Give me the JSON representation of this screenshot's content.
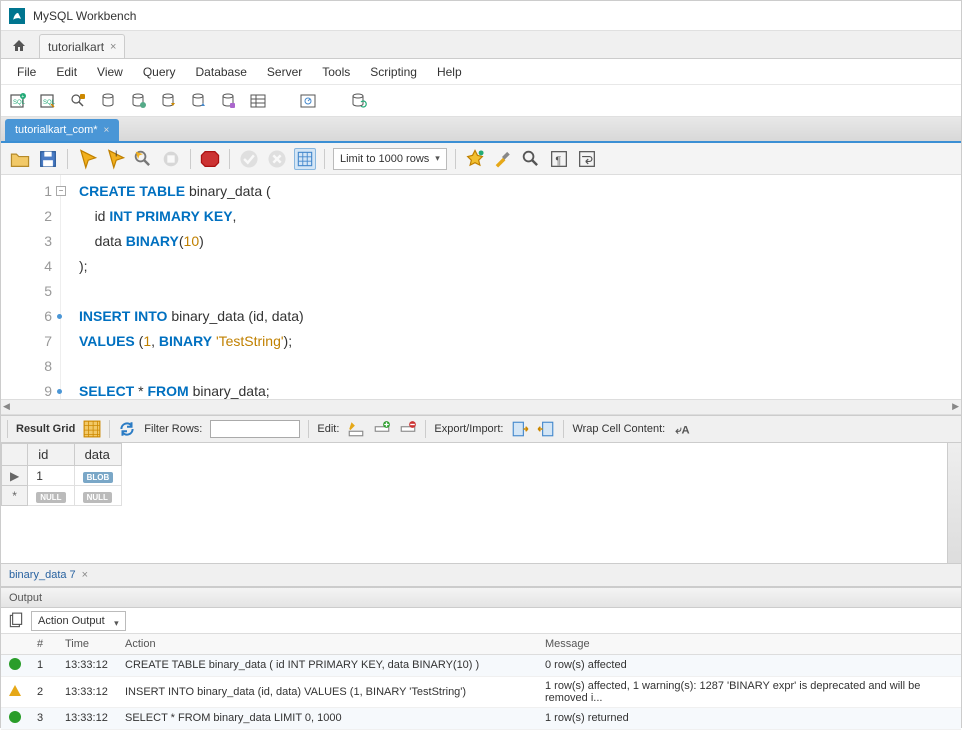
{
  "app": {
    "title": "MySQL Workbench"
  },
  "connection_tab": {
    "label": "tutorialkart"
  },
  "menu": [
    "File",
    "Edit",
    "View",
    "Query",
    "Database",
    "Server",
    "Tools",
    "Scripting",
    "Help"
  ],
  "editor_tab": {
    "label": "tutorialkart_com*"
  },
  "editor_toolbar": {
    "limit_label": "Limit to 1000 rows"
  },
  "code": {
    "lines": [
      {
        "n": 1,
        "collapse": true,
        "tokens": [
          [
            "kw",
            "CREATE"
          ],
          [
            "sp",
            " "
          ],
          [
            "kw",
            "TABLE"
          ],
          [
            "sp",
            " "
          ],
          [
            "ident",
            "binary_data"
          ],
          [
            "sp",
            " "
          ],
          [
            "punc",
            "("
          ]
        ]
      },
      {
        "n": 2,
        "tokens": [
          [
            "sp",
            "    "
          ],
          [
            "ident",
            "id"
          ],
          [
            "sp",
            " "
          ],
          [
            "kw",
            "INT"
          ],
          [
            "sp",
            " "
          ],
          [
            "kw",
            "PRIMARY"
          ],
          [
            "sp",
            " "
          ],
          [
            "kw",
            "KEY"
          ],
          [
            "punc",
            ","
          ]
        ]
      },
      {
        "n": 3,
        "tokens": [
          [
            "sp",
            "    "
          ],
          [
            "ident",
            "data"
          ],
          [
            "sp",
            " "
          ],
          [
            "kw",
            "BINARY"
          ],
          [
            "punc",
            "("
          ],
          [
            "num",
            "10"
          ],
          [
            "punc",
            ")"
          ]
        ]
      },
      {
        "n": 4,
        "tokens": [
          [
            "punc",
            ");"
          ]
        ]
      },
      {
        "n": 5,
        "tokens": []
      },
      {
        "n": 6,
        "dot": true,
        "tokens": [
          [
            "kw",
            "INSERT"
          ],
          [
            "sp",
            " "
          ],
          [
            "kw",
            "INTO"
          ],
          [
            "sp",
            " "
          ],
          [
            "ident",
            "binary_data"
          ],
          [
            "sp",
            " "
          ],
          [
            "punc",
            "("
          ],
          [
            "ident",
            "id"
          ],
          [
            "punc",
            ","
          ],
          [
            "sp",
            " "
          ],
          [
            "ident",
            "data"
          ],
          [
            "punc",
            ")"
          ]
        ]
      },
      {
        "n": 7,
        "tokens": [
          [
            "kw",
            "VALUES"
          ],
          [
            "sp",
            " "
          ],
          [
            "punc",
            "("
          ],
          [
            "num",
            "1"
          ],
          [
            "punc",
            ","
          ],
          [
            "sp",
            " "
          ],
          [
            "kw",
            "BINARY"
          ],
          [
            "sp",
            " "
          ],
          [
            "str",
            "'TestString'"
          ],
          [
            "punc",
            ");"
          ]
        ]
      },
      {
        "n": 8,
        "tokens": []
      },
      {
        "n": 9,
        "dot": true,
        "tokens": [
          [
            "kw",
            "SELECT"
          ],
          [
            "sp",
            " "
          ],
          [
            "punc",
            "*"
          ],
          [
            "sp",
            " "
          ],
          [
            "kw",
            "FROM"
          ],
          [
            "sp",
            " "
          ],
          [
            "ident",
            "binary_data"
          ],
          [
            "punc",
            ";"
          ]
        ]
      }
    ]
  },
  "result_toolbar": {
    "label": "Result Grid",
    "filter_label": "Filter Rows:",
    "edit_label": "Edit:",
    "export_label": "Export/Import:",
    "wrap_label": "Wrap Cell Content:"
  },
  "result_grid": {
    "columns": [
      "id",
      "data"
    ],
    "rows": [
      {
        "marker": "▶",
        "cells": [
          "1",
          {
            "badge": "BLOB"
          }
        ]
      },
      {
        "marker": "*",
        "cells": [
          {
            "badge": "NULL"
          },
          {
            "badge": "NULL"
          }
        ]
      }
    ]
  },
  "result_tab": {
    "label": "binary_data 7"
  },
  "output": {
    "header": "Output",
    "combo": "Action Output",
    "columns": [
      "",
      "#",
      "Time",
      "Action",
      "Message"
    ],
    "col_widths": [
      "24px",
      "28px",
      "60px",
      "420px",
      "auto"
    ],
    "rows": [
      {
        "status": "ok",
        "n": "1",
        "time": "13:33:12",
        "action": "CREATE TABLE binary_data (    id INT PRIMARY KEY,    data BINARY(10) )",
        "message": "0 row(s) affected"
      },
      {
        "status": "warn",
        "n": "2",
        "time": "13:33:12",
        "action": "INSERT INTO binary_data (id, data) VALUES (1, BINARY 'TestString')",
        "message": "1 row(s) affected, 1 warning(s): 1287 'BINARY expr' is deprecated and will be removed i..."
      },
      {
        "status": "ok",
        "n": "3",
        "time": "13:33:12",
        "action": "SELECT * FROM binary_data LIMIT 0, 1000",
        "message": "1 row(s) returned"
      }
    ]
  }
}
